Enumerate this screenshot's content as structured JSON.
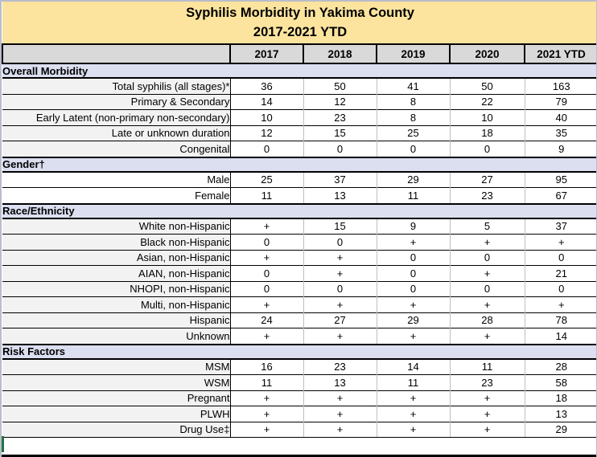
{
  "title": {
    "line1": "Syphilis Morbidity in Yakima County",
    "line2": "2017-2021 YTD"
  },
  "columns": [
    "2017",
    "2018",
    "2019",
    "2020",
    "2021 YTD"
  ],
  "sections": [
    {
      "name": "Overall Morbidity",
      "label_style": "gray",
      "rows": [
        {
          "label": "Total syphilis (all stages)*",
          "values": [
            "36",
            "50",
            "41",
            "50",
            "163"
          ]
        },
        {
          "label": "Primary & Secondary",
          "values": [
            "14",
            "12",
            "8",
            "22",
            "79"
          ]
        },
        {
          "label": "Early Latent (non-primary non-secondary)",
          "values": [
            "10",
            "23",
            "8",
            "10",
            "40"
          ]
        },
        {
          "label": "Late or unknown duration",
          "values": [
            "12",
            "15",
            "25",
            "18",
            "35"
          ]
        },
        {
          "label": "Congenital",
          "values": [
            "0",
            "0",
            "0",
            "0",
            "9"
          ]
        }
      ]
    },
    {
      "name": "Gender†",
      "label_style": "white",
      "rows": [
        {
          "label": "Male",
          "values": [
            "25",
            "37",
            "29",
            "27",
            "95"
          ]
        },
        {
          "label": "Female",
          "values": [
            "11",
            "13",
            "11",
            "23",
            "67"
          ]
        }
      ]
    },
    {
      "name": "Race/Ethnicity",
      "label_style": "gray",
      "rows": [
        {
          "label": "White non-Hispanic",
          "values": [
            "+",
            "15",
            "9",
            "5",
            "37"
          ]
        },
        {
          "label": "Black non-Hispanic",
          "values": [
            "0",
            "0",
            "+",
            "+",
            "+"
          ]
        },
        {
          "label": "Asian, non-Hispanic",
          "values": [
            "+",
            "+",
            "0",
            "0",
            "0"
          ]
        },
        {
          "label": "AIAN, non-Hispanic",
          "values": [
            "0",
            "+",
            "0",
            "+",
            "21"
          ]
        },
        {
          "label": "NHOPI, non-Hispanic",
          "values": [
            "0",
            "0",
            "0",
            "0",
            "0"
          ]
        },
        {
          "label": "Multi, non-Hispanic",
          "values": [
            "+",
            "+",
            "+",
            "+",
            "+"
          ]
        },
        {
          "label": "Hispanic",
          "values": [
            "24",
            "27",
            "29",
            "28",
            "78"
          ]
        },
        {
          "label": "Unknown",
          "values": [
            "+",
            "+",
            "+",
            "+",
            "14"
          ]
        }
      ]
    },
    {
      "name": "Risk Factors",
      "label_style": "gray",
      "rows": [
        {
          "label": "MSM",
          "values": [
            "16",
            "23",
            "14",
            "11",
            "28"
          ]
        },
        {
          "label": "WSM",
          "values": [
            "11",
            "13",
            "11",
            "23",
            "58"
          ]
        },
        {
          "label": "Pregnant",
          "values": [
            "+",
            "+",
            "+",
            "+",
            "18"
          ]
        },
        {
          "label": "PLWH",
          "values": [
            "+",
            "+",
            "+",
            "+",
            "13"
          ]
        },
        {
          "label": "Drug Use‡",
          "values": [
            "+",
            "+",
            "+",
            "+",
            "29"
          ]
        }
      ]
    }
  ],
  "colors": {
    "title_bg": "#FCE49E",
    "column_header_bg": "#D9D9D9",
    "section_header_bg": "#DBDFF0",
    "row_label_bg": "#F2F2F2",
    "gender_label_bg": "#FFFFFF",
    "value_cell_bg": "#FFFFFF",
    "grid_line": "#BFBFBF",
    "border": "#000000",
    "selection_green": "#217346"
  }
}
